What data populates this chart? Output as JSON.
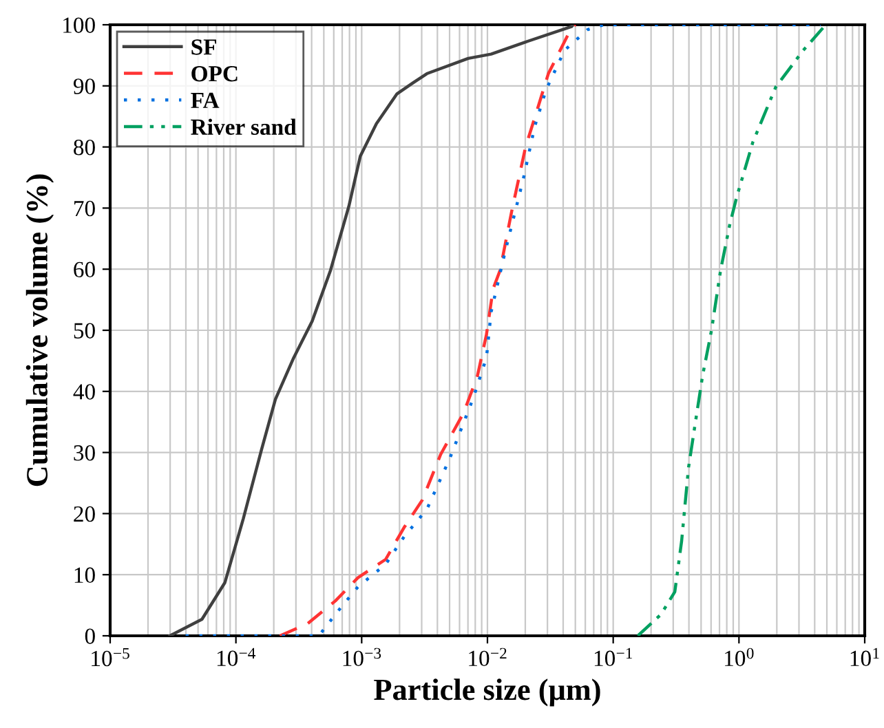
{
  "chart_data": {
    "type": "line",
    "xlabel": "Particle size (μm)",
    "ylabel": "Cumulative volume (%)",
    "log": "x",
    "xlim": [
      1e-05,
      10
    ],
    "ylim": [
      0,
      100
    ],
    "xticks": [
      {
        "value": 1e-05,
        "label": "10$^{−5}$"
      },
      {
        "value": 0.0001,
        "label": "10$^{−4}$"
      },
      {
        "value": 0.001,
        "label": "10$^{−3}$"
      },
      {
        "value": 0.01,
        "label": "10$^{−2}$"
      },
      {
        "value": 0.1,
        "label": "10$^{−1}$"
      },
      {
        "value": 1,
        "label": "10$^{0}$"
      },
      {
        "value": 10,
        "label": "10$^{1}$"
      }
    ],
    "yticks": [
      0,
      10,
      20,
      30,
      40,
      50,
      60,
      70,
      80,
      90,
      100
    ],
    "grid": true,
    "legend": "top left",
    "marker": "none",
    "series": [
      {
        "name": "SF",
        "color": "#404040",
        "line_style": "solid",
        "x": [
          2.98e-05,
          5.37e-05,
          8.17e-05,
          0.0001146,
          0.00016,
          0.000206,
          0.000288,
          0.000404,
          0.000565,
          0.000791,
          0.000975,
          0.00131,
          0.00191,
          0.00256,
          0.0033,
          0.00703,
          0.0107,
          0.0209,
          0.0466,
          0.048
        ],
        "values": [
          0,
          2.7,
          8.7,
          19.2,
          30.5,
          38.7,
          45.5,
          51.5,
          59.8,
          70.3,
          78.5,
          83.8,
          88.7,
          90.5,
          92,
          94.5,
          95.2,
          97.3,
          99.7,
          100
        ]
      },
      {
        "name": "OPC",
        "color": "#ff3333",
        "line_style": "dashed",
        "x": [
          0.000224,
          0.000372,
          0.000617,
          0.000933,
          0.00155,
          0.00217,
          0.00303,
          0.00425,
          0.00647,
          0.00832,
          0.00982,
          0.0111,
          0.0126,
          0.0156,
          0.0201,
          0.0248,
          0.0305,
          0.0466,
          0.0501
        ],
        "values": [
          0,
          2,
          5.7,
          9.5,
          12.5,
          17.7,
          22.2,
          29.7,
          36.5,
          42.5,
          49.3,
          56.8,
          59.8,
          69.5,
          80,
          86,
          92,
          99.5,
          100
        ]
      },
      {
        "name": "FA",
        "color": "#0070e0",
        "line_style": "dotted",
        "x": [
          3.98e-05,
          0.000457,
          0.000617,
          0.000933,
          0.00155,
          0.00217,
          0.0033,
          0.00501,
          0.00764,
          0.00982,
          0.0107,
          0.0138,
          0.0193,
          0.0238,
          0.0293,
          0.041,
          0.0625,
          0.0838,
          4.47
        ],
        "values": [
          0,
          0,
          3.5,
          8,
          11.7,
          16.2,
          20.7,
          29,
          38.7,
          45.5,
          53,
          62.8,
          74.8,
          83.4,
          89.4,
          95.8,
          99.2,
          100,
          100
        ]
      },
      {
        "name": "River sand",
        "color": "#00a060",
        "line_style": "dashdotdot",
        "x": [
          0.157,
          0.24,
          0.309,
          0.35,
          0.397,
          0.451,
          0.513,
          0.605,
          0.714,
          0.845,
          0.959,
          1.29,
          1.96,
          3.24,
          4.9
        ],
        "values": [
          0,
          3.5,
          7.2,
          15.5,
          27.5,
          35,
          42.5,
          50,
          59.8,
          67.3,
          71.8,
          80.8,
          89.8,
          95.8,
          100
        ]
      }
    ]
  }
}
